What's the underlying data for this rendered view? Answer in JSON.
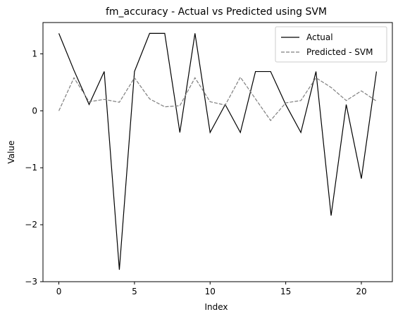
{
  "chart_data": {
    "type": "line",
    "title": "fm_accuracy - Actual vs Predicted using SVM",
    "xlabel": "Index",
    "ylabel": "Value",
    "xlim": [
      -1.05,
      22.05
    ],
    "ylim": [
      -3.0,
      1.55
    ],
    "xticks": [
      0,
      5,
      10,
      15,
      20
    ],
    "xtick_labels": [
      "0",
      "5",
      "10",
      "15",
      "20"
    ],
    "yticks": [
      -3,
      -2,
      -1,
      0,
      1
    ],
    "ytick_labels": [
      "−3",
      "−2",
      "−1",
      "0",
      "1"
    ],
    "grid": false,
    "legend_position": "top-right",
    "x": [
      0,
      1,
      2,
      3,
      4,
      5,
      6,
      7,
      8,
      9,
      10,
      11,
      12,
      13,
      14,
      15,
      16,
      17,
      18,
      19,
      20,
      21
    ],
    "series": [
      {
        "name": "Actual",
        "color": "#000000",
        "style": "solid",
        "values": [
          1.36,
          0.71,
          0.11,
          0.69,
          -2.79,
          0.69,
          1.36,
          1.36,
          -0.38,
          1.36,
          -0.38,
          0.11,
          -0.38,
          0.69,
          0.69,
          0.11,
          -0.38,
          0.69,
          -1.84,
          0.11,
          -1.19,
          0.69
        ]
      },
      {
        "name": "Predicted - SVM",
        "color": "#7f7f7f",
        "style": "dashed",
        "values": [
          0.0,
          0.58,
          0.16,
          0.2,
          0.15,
          0.58,
          0.21,
          0.07,
          0.09,
          0.58,
          0.16,
          0.1,
          0.59,
          0.21,
          -0.17,
          0.14,
          0.18,
          0.58,
          0.41,
          0.18,
          0.35,
          0.17
        ]
      }
    ]
  }
}
